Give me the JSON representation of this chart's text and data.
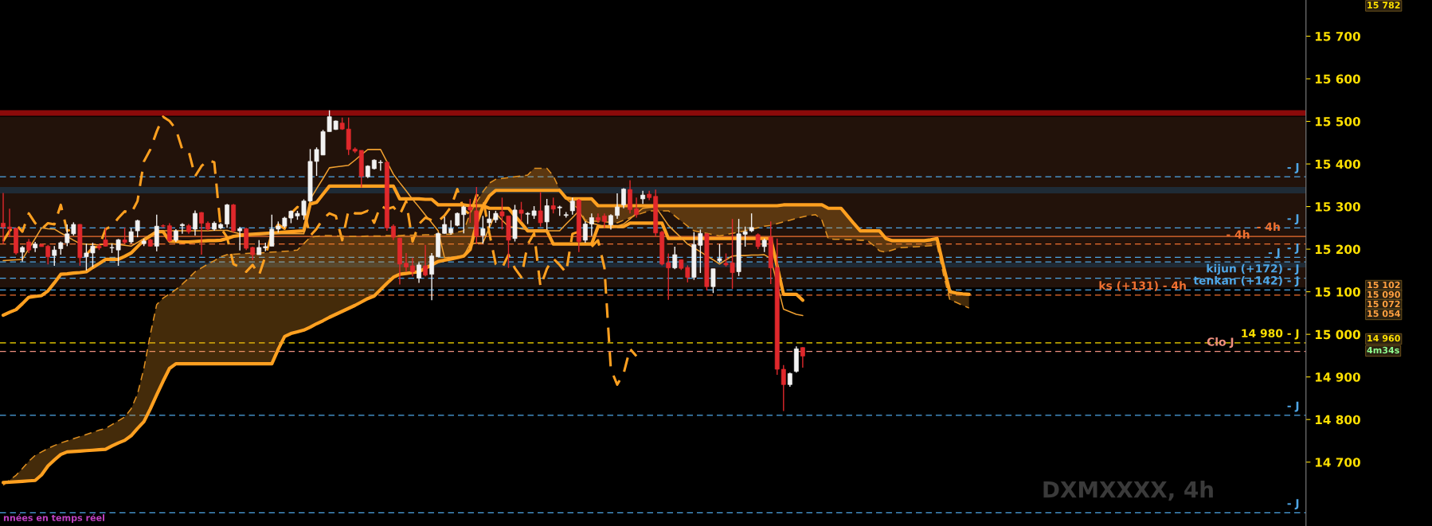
{
  "chart_data": {
    "type": "candlestick",
    "categories": [
      null,
      null,
      null,
      null,
      null,
      null,
      null,
      null,
      null,
      null,
      null,
      null,
      null,
      null,
      null,
      null,
      null,
      null,
      null,
      null,
      null,
      null,
      null,
      null,
      null,
      null,
      null,
      null,
      null,
      null,
      null,
      null,
      null,
      null,
      null,
      null,
      null,
      null,
      null,
      null,
      null,
      null,
      null,
      null,
      null,
      null,
      null,
      null,
      null,
      null,
      null,
      null,
      null,
      null,
      null,
      null,
      null,
      null,
      null,
      null,
      null,
      null,
      null,
      null,
      null,
      null,
      null,
      null,
      null,
      null,
      null,
      null,
      null,
      null,
      null,
      null,
      null,
      null,
      null,
      null,
      null,
      null,
      null,
      null,
      null,
      null,
      null,
      null,
      null,
      null,
      null,
      null,
      null,
      null,
      null,
      null,
      null,
      null,
      null,
      null,
      null,
      null,
      null,
      null,
      null,
      null,
      null,
      null,
      null,
      null,
      null,
      null,
      null,
      null,
      null,
      null,
      null,
      null,
      null,
      null,
      null,
      null,
      null,
      null,
      null,
      null,
      null,
      null,
      null,
      null,
      null,
      null,
      null,
      null,
      null,
      null,
      null,
      null,
      null,
      null,
      null,
      null,
      null,
      null,
      null,
      null,
      null,
      null,
      null,
      null,
      null,
      null
    ],
    "ohlc": [
      [
        15261,
        15332,
        15213,
        15252
      ],
      [
        15252,
        15295,
        15228,
        15248
      ],
      [
        15249,
        15250,
        15187,
        15191
      ],
      [
        15193,
        15207,
        15171,
        15204
      ],
      [
        15217,
        15224,
        15191,
        15198
      ],
      [
        15203,
        15217,
        15193,
        15212
      ],
      [
        15211,
        15213,
        15206,
        15206
      ],
      [
        15207,
        15210,
        15164,
        15182
      ],
      [
        15185,
        15207,
        15161,
        15198
      ],
      [
        15201,
        15218,
        15187,
        15215
      ],
      [
        15215,
        15258,
        15207,
        15236
      ],
      [
        15236,
        15263,
        15232,
        15258
      ],
      [
        15258,
        15259,
        15161,
        15180
      ],
      [
        15182,
        15213,
        15150,
        15191
      ],
      [
        15191,
        15215,
        15158,
        15207
      ],
      [
        15207,
        15213,
        15198,
        15203
      ],
      [
        15222,
        15250,
        15206,
        15207
      ],
      [
        15203,
        15213,
        15191,
        15204
      ],
      [
        15198,
        15224,
        15161,
        15222
      ],
      [
        15222,
        15250,
        15213,
        15216
      ],
      [
        15217,
        15250,
        15213,
        15241
      ],
      [
        15243,
        15269,
        15228,
        15267
      ],
      [
        15213,
        15224,
        15207,
        15219
      ],
      [
        15222,
        15224,
        15206,
        15207
      ],
      [
        15207,
        15281,
        15195,
        15254
      ],
      [
        15255,
        15258,
        15250,
        15254
      ],
      [
        15255,
        15261,
        15217,
        15219
      ],
      [
        15221,
        15247,
        15217,
        15243
      ],
      [
        15255,
        15261,
        15236,
        15258
      ],
      [
        15255,
        15259,
        15236,
        15241
      ],
      [
        15247,
        15291,
        15232,
        15284
      ],
      [
        15286,
        15287,
        15187,
        15261
      ],
      [
        15261,
        15265,
        15243,
        15247
      ],
      [
        15247,
        15265,
        15243,
        15261
      ],
      [
        15250,
        15261,
        15247,
        15258
      ],
      [
        15259,
        15306,
        15250,
        15304
      ],
      [
        15304,
        15306,
        15239,
        15243
      ],
      [
        15243,
        15252,
        15197,
        15248
      ],
      [
        15248,
        15250,
        15198,
        15202
      ],
      [
        15204,
        15206,
        15174,
        15187
      ],
      [
        15187,
        15221,
        15187,
        15204
      ],
      [
        15203,
        15215,
        15195,
        15206
      ],
      [
        15207,
        15281,
        15207,
        15247
      ],
      [
        15247,
        15265,
        15239,
        15254
      ],
      [
        15254,
        15276,
        15250,
        15273
      ],
      [
        15273,
        15291,
        15261,
        15289
      ],
      [
        15278,
        15290,
        15269,
        15284
      ],
      [
        15280,
        15317,
        15269,
        15313
      ],
      [
        15313,
        15435,
        15311,
        15406
      ],
      [
        15406,
        15439,
        15372,
        15434
      ],
      [
        15421,
        15480,
        15421,
        15476
      ],
      [
        15476,
        15526,
        15476,
        15511
      ],
      [
        15481,
        15502,
        15480,
        15501
      ],
      [
        15496,
        15509,
        15480,
        15482
      ],
      [
        15482,
        15509,
        15421,
        15434
      ],
      [
        15435,
        15439,
        15426,
        15430
      ],
      [
        15432,
        15432,
        15345,
        15371
      ],
      [
        15370,
        15397,
        15367,
        15395
      ],
      [
        15389,
        15411,
        15387,
        15409
      ],
      [
        15403,
        15409,
        15384,
        15404
      ],
      [
        15404,
        15407,
        15243,
        15250
      ],
      [
        15254,
        15258,
        15221,
        15228
      ],
      [
        15226,
        15227,
        15117,
        15165
      ],
      [
        15167,
        15191,
        15147,
        15158
      ],
      [
        15161,
        15180,
        15136,
        15147
      ],
      [
        15132,
        15169,
        15121,
        15163
      ],
      [
        15161,
        15210,
        15136,
        15139
      ],
      [
        15141,
        15191,
        15080,
        15184
      ],
      [
        15182,
        15239,
        15182,
        15237
      ],
      [
        15237,
        15276,
        15236,
        15258
      ],
      [
        15238,
        15268,
        15234,
        15248
      ],
      [
        15256,
        15286,
        15254,
        15284
      ],
      [
        15281,
        15302,
        15237,
        15299
      ],
      [
        15299,
        15318,
        15262,
        15292
      ],
      [
        15290,
        15346,
        15212,
        15231
      ],
      [
        15232,
        15278,
        15213,
        15248
      ],
      [
        15262,
        15290,
        15250,
        15271
      ],
      [
        15269,
        15290,
        15262,
        15284
      ],
      [
        15288,
        15321,
        15246,
        15278
      ],
      [
        15278,
        15278,
        15156,
        15221
      ],
      [
        15225,
        15304,
        15218,
        15292
      ],
      [
        15292,
        15311,
        15265,
        15284
      ],
      [
        15282,
        15287,
        15259,
        15284
      ],
      [
        15279,
        15301,
        15271,
        15290
      ],
      [
        15290,
        15334,
        15253,
        15262
      ],
      [
        15264,
        15318,
        15246,
        15302
      ],
      [
        15302,
        15321,
        15284,
        15294
      ],
      [
        15297,
        15302,
        15278,
        15299
      ],
      [
        15279,
        15287,
        15274,
        15281
      ],
      [
        15290,
        15321,
        15281,
        15313
      ],
      [
        15315,
        15318,
        15193,
        15218
      ],
      [
        15221,
        15265,
        15215,
        15259
      ],
      [
        15259,
        15284,
        15231,
        15274
      ],
      [
        15274,
        15284,
        15262,
        15268
      ],
      [
        15278,
        15284,
        15250,
        15265
      ],
      [
        15257,
        15282,
        15246,
        15279
      ],
      [
        15279,
        15331,
        15271,
        15299
      ],
      [
        15304,
        15343,
        15296,
        15341
      ],
      [
        15340,
        15362,
        15284,
        15293
      ],
      [
        15295,
        15321,
        15274,
        15281
      ],
      [
        15318,
        15337,
        15306,
        15327
      ],
      [
        15329,
        15337,
        15315,
        15321
      ],
      [
        15324,
        15340,
        15228,
        15238
      ],
      [
        15240,
        15243,
        15162,
        15165
      ],
      [
        15168,
        15190,
        15081,
        15156
      ],
      [
        15156,
        15206,
        15153,
        15187
      ],
      [
        15175,
        15175,
        15151,
        15155
      ],
      [
        15157,
        15162,
        15122,
        15134
      ],
      [
        15134,
        15240,
        15128,
        15211
      ],
      [
        15209,
        15246,
        15144,
        15237
      ],
      [
        15236,
        15238,
        15103,
        15112
      ],
      [
        15112,
        15154,
        15097,
        15154
      ],
      [
        15173,
        15212,
        15168,
        15178
      ],
      [
        15167,
        15190,
        15159,
        15163
      ],
      [
        15168,
        15271,
        15107,
        15145
      ],
      [
        15147,
        15271,
        15137,
        15236
      ],
      [
        15235,
        15253,
        15206,
        15241
      ],
      [
        15243,
        15284,
        15240,
        15251
      ],
      [
        15234,
        15237,
        15200,
        15206
      ],
      [
        15206,
        15225,
        15193,
        15221
      ],
      [
        15228,
        15265,
        15118,
        15156
      ],
      [
        15157,
        15225,
        14905,
        14918
      ],
      [
        14918,
        14928,
        14820,
        14882
      ],
      [
        14882,
        14910,
        14877,
        14908
      ],
      [
        14913,
        14972,
        14910,
        14966
      ],
      [
        14969,
        14970,
        14922,
        14949
      ],
      null,
      null,
      null,
      null,
      null,
      null,
      null,
      null,
      null,
      null,
      null,
      null,
      null,
      null,
      null,
      null,
      null,
      null,
      null,
      null,
      null,
      null,
      null,
      null,
      null,
      null
    ],
    "series": [
      {
        "type": "line",
        "color": "#ffa020",
        "values": [
          15045,
          15052,
          15058,
          15072,
          15087,
          15089,
          15091,
          15102,
          15121,
          15141,
          15142,
          15144,
          15145,
          15147,
          15157,
          15166,
          15176,
          15176,
          15176,
          15183,
          15191,
          15206,
          15221,
          15231,
          15241,
          15241,
          15219,
          15218,
          15217,
          15217,
          15218,
          15219,
          15220,
          15220,
          15221,
          15225,
          15230,
          15232,
          15234,
          15235,
          15236,
          15237,
          15238,
          15239,
          15240,
          15241,
          15242,
          15243,
          15306,
          15310,
          15329,
          15348,
          15348,
          15348,
          15348,
          15348,
          15348,
          15348,
          15348,
          15348,
          15348,
          15348,
          15318,
          15318,
          15318,
          15318,
          15317,
          15317,
          15304,
          15304,
          15304,
          15304,
          15304,
          15302,
          15302,
          15302,
          15296,
          15296,
          15296,
          15296,
          15278,
          15261,
          15243,
          15243,
          15243,
          15243,
          15212,
          15212,
          15212,
          15212,
          15212,
          15212,
          15212,
          15253,
          15253,
          15253,
          15253,
          15253,
          15261,
          15261,
          15261,
          15261,
          15261,
          15261,
          15225,
          15225,
          15225,
          15225,
          15225,
          15225,
          15225,
          15225,
          15225,
          15225,
          15225,
          15225,
          15225,
          15225,
          15225,
          15225,
          15225,
          15160,
          15094,
          15094,
          15094,
          15080,
          null,
          null,
          null,
          null,
          null,
          null,
          null,
          null,
          null,
          null,
          null,
          null,
          null,
          null,
          null,
          null,
          null,
          null,
          null,
          null,
          null,
          null,
          null,
          null,
          null,
          null
        ]
      },
      {
        "type": "line",
        "color": "#f0a030",
        "values": [
          15173,
          15174,
          15175,
          15176,
          15201,
          15225,
          15250,
          15248,
          15247,
          15238,
          15230,
          15221,
          15213,
          15212,
          15211,
          15210,
          15212,
          15213,
          15211,
          15209,
          15207,
          15216,
          15225,
          15234,
          15243,
          15243,
          15243,
          15243,
          15243,
          15243,
          15243,
          15243,
          15243,
          15244,
          15244,
          15244,
          15240,
          15236,
          15236,
          15236,
          15236,
          15236,
          15236,
          15236,
          15236,
          15236,
          15236,
          15236,
          15317,
          15342,
          15366,
          15391,
          15393,
          15395,
          15397,
          15409,
          15422,
          15434,
          15434,
          15434,
          15405,
          15376,
          15356,
          15337,
          15317,
          15299,
          15280,
          15262,
          15243,
          15180,
          15181,
          15183,
          15184,
          15212,
          15214,
          15215,
          15250,
          15284,
          15268,
          15253,
          15251,
          15248,
          15246,
          15243,
          15243,
          15243,
          15243,
          15243,
          15259,
          15274,
          15290,
          15265,
          15261,
          15257,
          15253,
          15249,
          15254,
          15259,
          15271,
          15284,
          15296,
          15298,
          15299,
          15278,
          15256,
          15241,
          15227,
          15212,
          15203,
          15194,
          15184,
          15175,
          15165,
          15175,
          15184,
          15185,
          15185,
          15186,
          15186,
          15187,
          15178,
          15119,
          15059,
          15053,
          15047,
          15044,
          null,
          null,
          null,
          null,
          null,
          null,
          null,
          null,
          null,
          null,
          null,
          null,
          null,
          null,
          null,
          null,
          null,
          null,
          null,
          null,
          null,
          null,
          null,
          null,
          null,
          null
        ]
      },
      {
        "type": "line",
        "color": "#ffa020",
        "line_style": "dashed",
        "values": [
          15219,
          15243,
          15258,
          15241,
          15284,
          15261,
          15247,
          15261,
          15258,
          15304,
          15243,
          15248,
          null,
          15187,
          15204,
          15206,
          15247,
          15254,
          15273,
          15289,
          15284,
          15313,
          15406,
          15434,
          15476,
          15511,
          15501,
          15482,
          15434,
          15430,
          15371,
          15395,
          15409,
          15404,
          15250,
          15228,
          15165,
          15158,
          15147,
          15163,
          15139,
          15184,
          15237,
          15258,
          15248,
          15284,
          15299,
          15292,
          15231,
          15248,
          15271,
          15284,
          15278,
          15221,
          15292,
          15284,
          15284,
          15290,
          15262,
          15302,
          15294,
          15299,
          15281,
          15313,
          15218,
          15259,
          15274,
          15268,
          15265,
          15279,
          15299,
          15341,
          15293,
          15281,
          15327,
          15321,
          15238,
          15165,
          15156,
          15187,
          15155,
          15134,
          15211,
          15237,
          15112,
          15154,
          15178,
          15163,
          15145,
          15236,
          15241,
          null,
          15206,
          15221,
          15156,
          14918,
          14882,
          14908,
          14966,
          14949,
          null,
          null,
          null,
          null,
          null,
          null,
          null,
          null,
          null,
          null,
          null,
          null,
          null,
          null,
          null,
          null,
          null,
          null,
          null,
          null,
          null,
          null,
          null,
          null,
          null,
          null,
          null,
          null,
          null,
          null,
          null,
          null,
          null,
          null,
          null,
          null,
          null,
          null,
          null,
          null,
          null,
          null,
          null,
          null,
          null,
          null,
          null,
          null,
          null,
          null,
          null,
          null
        ]
      },
      {
        "type": "line",
        "color": "#e09020",
        "line_style": "dashed",
        "values": [
          14646,
          14658,
          14669,
          14685,
          14702,
          14716,
          14724,
          14732,
          14739,
          14745,
          14750,
          14755,
          14760,
          14765,
          14770,
          14775,
          14779,
          14788,
          14797,
          14806,
          14825,
          14860,
          14920,
          15000,
          15070,
          15085,
          15095,
          15105,
          15118,
          15132,
          15147,
          15156,
          15165,
          15173,
          15182,
          15187,
          15188,
          15189,
          15190,
          15191,
          15191,
          15192,
          15193,
          15194,
          15195,
          15196,
          15198,
          15213,
          15228,
          15230,
          15232,
          15232,
          15231,
          15231,
          15230,
          15230,
          15230,
          15231,
          15231,
          15231,
          15232,
          15232,
          15232,
          15233,
          15233,
          15233,
          15234,
          15234,
          15234,
          15235,
          15235,
          15240,
          15243,
          15285,
          15310,
          15335,
          15355,
          15364,
          15366,
          15368,
          15370,
          15372,
          15374,
          15390,
          15390,
          15390,
          15372,
          15340,
          15318,
          15306,
          15294,
          15268,
          15266,
          15265,
          15264,
          15263,
          15262,
          15268,
          15274,
          15280,
          15285,
          15290,
          15290,
          15290,
          15290,
          15278,
          15266,
          15254,
          15243,
          15240,
          15237,
          15234,
          15231,
          15234,
          15237,
          15240,
          15243,
          15247,
          15250,
          15254,
          15256,
          15260,
          15264,
          15268,
          15272,
          15276,
          15279,
          15281,
          15268,
          15224,
          15223,
          15223,
          15222,
          15222,
          15221,
          15221,
          15210,
          15196,
          15193,
          15198,
          15203,
          15204,
          15205,
          15206,
          15207,
          15208,
          15209,
          15140,
          15081,
          15075,
          15068,
          15062
        ],
        "lower": [
          14652,
          14653,
          14654,
          14655,
          14656,
          14657,
          14670,
          14691,
          14705,
          14718,
          14724,
          14725,
          14726,
          14727,
          14728,
          14729,
          14730,
          14738,
          14745,
          14751,
          14762,
          14779,
          14795,
          14825,
          14858,
          14890,
          14920,
          14931,
          14931,
          14931,
          14931,
          14931,
          14931,
          14931,
          14931,
          14931,
          14931,
          14931,
          14931,
          14931,
          14931,
          14931,
          14931,
          14965,
          14995,
          15002,
          15006,
          15010,
          15017,
          15025,
          15032,
          15040,
          15047,
          15054,
          15061,
          15068,
          15076,
          15084,
          15090,
          15105,
          15120,
          15134,
          15141,
          15143,
          15145,
          15147,
          15155,
          15163,
          15171,
          15174,
          15177,
          15180,
          15184,
          15199,
          15260,
          15300,
          15325,
          15338,
          15338,
          15338,
          15338,
          15338,
          15338,
          15338,
          15338,
          15338,
          15338,
          15338,
          15320,
          15318,
          15318,
          15318,
          15318,
          15302,
          15302,
          15302,
          15302,
          15302,
          15302,
          15302,
          15302,
          15302,
          15302,
          15302,
          15302,
          15302,
          15302,
          15302,
          15302,
          15302,
          15302,
          15302,
          15302,
          15302,
          15302,
          15302,
          15302,
          15302,
          15302,
          15302,
          15302,
          15302,
          15304,
          15304,
          15304,
          15304,
          15304,
          15304,
          15304,
          15296,
          15296,
          15296,
          15278,
          15260,
          15243,
          15243,
          15243,
          15243,
          15225,
          15220,
          15220,
          15220,
          15220,
          15220,
          15220,
          15222,
          15225,
          15160,
          15100,
          15097,
          15095,
          15094
        ],
        "upper": [
          14646,
          14658,
          14669,
          14685,
          14702,
          14716,
          14724,
          14732,
          14739,
          14745,
          14750,
          14755,
          14760,
          14765,
          14770,
          14775,
          14779,
          14788,
          14797,
          14806,
          14825,
          14860,
          14920,
          15000,
          15070,
          15085,
          15095,
          15105,
          15118,
          15132,
          15147,
          15156,
          15165,
          15173,
          15182,
          15187,
          15188,
          15189,
          15190,
          15191,
          15191,
          15192,
          15193,
          15194,
          15195,
          15196,
          15198,
          15213,
          15228,
          15230,
          15232,
          15232,
          15231,
          15231,
          15230,
          15230,
          15230,
          15231,
          15231,
          15231,
          15232,
          15232,
          15232,
          15233,
          15233,
          15233,
          15234,
          15234,
          15234,
          15235,
          15235,
          15240,
          15243,
          15285,
          15310,
          15335,
          15355,
          15364,
          15366,
          15368,
          15370,
          15372,
          15374,
          15390,
          15390,
          15390,
          15372,
          15340,
          15318,
          15306,
          15294,
          15268,
          15266,
          15265,
          15264,
          15263,
          15262,
          15268,
          15274,
          15280,
          15285,
          15290,
          15290,
          15290,
          15290,
          15278,
          15266,
          15254,
          15243,
          15240,
          15237,
          15234,
          15231,
          15234,
          15237,
          15240,
          15243,
          15247,
          15250,
          15254,
          15256,
          15260,
          15264,
          15268,
          15272,
          15276,
          15279,
          15281,
          15268,
          15224,
          15223,
          15223,
          15222,
          15222,
          15221,
          15221,
          15210,
          15196,
          15193,
          15198,
          15203,
          15204,
          15205,
          15206,
          15207,
          15208,
          15209,
          15140,
          15081,
          15075,
          15068,
          15062
        ]
      },
      {
        "type": "line",
        "color": "#ffa020",
        "values": [
          14652,
          14653,
          14654,
          14655,
          14656,
          14657,
          14670,
          14691,
          14705,
          14718,
          14724,
          14725,
          14726,
          14727,
          14728,
          14729,
          14730,
          14738,
          14745,
          14751,
          14762,
          14779,
          14795,
          14825,
          14858,
          14890,
          14920,
          14931,
          14931,
          14931,
          14931,
          14931,
          14931,
          14931,
          14931,
          14931,
          14931,
          14931,
          14931,
          14931,
          14931,
          14931,
          14931,
          14965,
          14995,
          15002,
          15006,
          15010,
          15017,
          15025,
          15032,
          15040,
          15047,
          15054,
          15061,
          15068,
          15076,
          15084,
          15090,
          15105,
          15120,
          15134,
          15141,
          15143,
          15145,
          15147,
          15155,
          15163,
          15171,
          15174,
          15177,
          15180,
          15184,
          15199,
          15260,
          15300,
          15325,
          15338,
          15338,
          15338,
          15338,
          15338,
          15338,
          15338,
          15338,
          15338,
          15338,
          15338,
          15320,
          15318,
          15318,
          15318,
          15318,
          15302,
          15302,
          15302,
          15302,
          15302,
          15302,
          15302,
          15302,
          15302,
          15302,
          15302,
          15302,
          15302,
          15302,
          15302,
          15302,
          15302,
          15302,
          15302,
          15302,
          15302,
          15302,
          15302,
          15302,
          15302,
          15302,
          15302,
          15302,
          15302,
          15304,
          15304,
          15304,
          15304,
          15304,
          15304,
          15304,
          15296,
          15296,
          15296,
          15278,
          15260,
          15243,
          15243,
          15243,
          15243,
          15225,
          15220,
          15220,
          15220,
          15220,
          15220,
          15220,
          15222,
          15225,
          15160,
          15100,
          15097,
          15095,
          15094
        ]
      }
    ],
    "ylim": [
      14550,
      15785
    ],
    "yticks": [
      {
        "value": 14700,
        "label": "14 700"
      },
      {
        "value": 14800,
        "label": "14 800"
      },
      {
        "value": 14900,
        "label": "14 900"
      },
      {
        "value": 15000,
        "label": "15 000"
      },
      {
        "value": 15100,
        "label": "15 100"
      },
      {
        "value": 15200,
        "label": "15 200"
      },
      {
        "value": 15300,
        "label": "15 300"
      },
      {
        "value": 15400,
        "label": "15 400"
      },
      {
        "value": 15500,
        "label": "15 500"
      },
      {
        "value": 15600,
        "label": "15 600"
      },
      {
        "value": 15700,
        "label": "15 700"
      }
    ],
    "bands": [
      {
        "axis": "y",
        "from": 15110,
        "to": 15511,
        "color": "#22120a"
      },
      {
        "axis": "y",
        "from": 15513,
        "to": 15526,
        "color": "#8b0a0a"
      },
      {
        "axis": "y",
        "from": 15331,
        "to": 15346,
        "color": "#1f2b36"
      },
      {
        "axis": "y",
        "from": 15157,
        "to": 15168,
        "color": "#1f2b36"
      }
    ],
    "ref_lines": [
      {
        "axis": "y",
        "value": 15370,
        "label": "- J",
        "color": "#4ea6e6",
        "line_style": "dashed"
      },
      {
        "axis": "y",
        "value": 15250,
        "label": "- J",
        "color": "#4ea6e6",
        "line_style": "dashed"
      },
      {
        "axis": "y",
        "value": 15230,
        "label": "- 4h",
        "color": "#f07030",
        "line_style": "solid"
      },
      {
        "axis": "y",
        "value": 15212,
        "label": "- 4h",
        "color": "#f07030",
        "line_style": "dashed"
      },
      {
        "axis": "y",
        "value": 15181,
        "label": "- J",
        "color": "#4ea6e6",
        "line_style": "dashed"
      },
      {
        "axis": "y",
        "value": 15170,
        "label": "- J",
        "color": "#4ea6e6",
        "line_style": "dashed"
      },
      {
        "axis": "y",
        "value": 15132,
        "label": "kijun (+172) - J",
        "color": "#4ea6e6",
        "line_style": "dashed"
      },
      {
        "axis": "y",
        "value": 15104,
        "label": "tenkan (+142) - J",
        "color": "#4ea6e6",
        "line_style": "dashed"
      },
      {
        "axis": "y",
        "value": 15092,
        "label": "ks (+131) - 4h",
        "color": "#f07030",
        "line_style": "dashed"
      },
      {
        "axis": "y",
        "value": 14980,
        "label": "14 980 - J",
        "color": "#ffe000",
        "line_style": "dashed"
      },
      {
        "axis": "y",
        "value": 14960,
        "label": "Clo J",
        "color": "#f09080",
        "line_style": "dashed"
      },
      {
        "axis": "y",
        "value": 14810,
        "label": "- J",
        "color": "#4ea6e6",
        "line_style": "dashed"
      },
      {
        "axis": "y",
        "value": 14581,
        "label": "- J",
        "color": "#4ea6e6",
        "line_style": "dashed"
      }
    ],
    "annotations": [
      "15 782",
      "15 102",
      "15 090",
      "15 072",
      "15 054",
      "14 960",
      "4m34s",
      "nnées en temps réel",
      "DXMXXXX, 4h"
    ]
  }
}
